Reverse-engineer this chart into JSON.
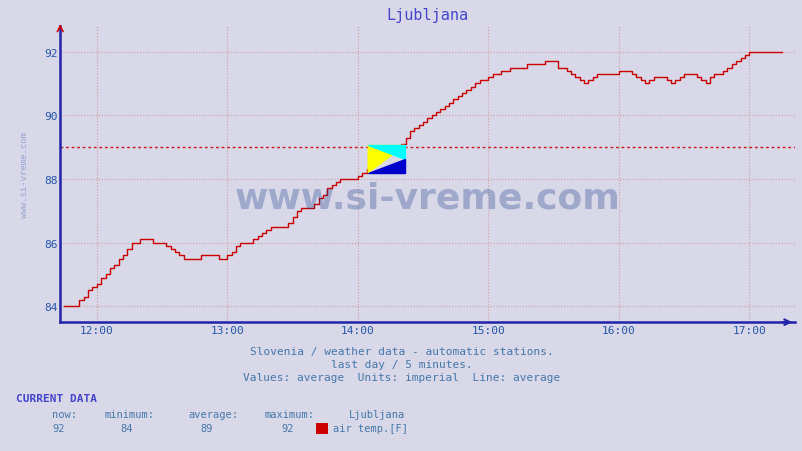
{
  "title": "Ljubljana",
  "title_color": "#4444cc",
  "bg_color": "#d8d8e8",
  "plot_bg_color": "#d8d8e8",
  "line_color": "#cc0000",
  "line_color2": "#111111",
  "avg_line_color": "#cc0000",
  "avg_line_value": 89,
  "ylim": [
    83.5,
    92.8
  ],
  "xlim_start": 11.72,
  "xlim_end": 17.35,
  "xticks": [
    12.0,
    13.0,
    14.0,
    15.0,
    16.0,
    17.0
  ],
  "xtick_labels": [
    "12:00",
    "13:00",
    "14:00",
    "15:00",
    "16:00",
    "17:00"
  ],
  "yticks": [
    84,
    86,
    88,
    90,
    92
  ],
  "grid_color_h": "#cc9999",
  "grid_color_v": "#cc9999",
  "axis_color": "#2222aa",
  "tick_color": "#2255aa",
  "subtitle1": "Slovenia / weather data - automatic stations.",
  "subtitle2": "last day / 5 minutes.",
  "subtitle3": "Values: average  Units: imperial  Line: average",
  "subtitle_color": "#4477aa",
  "watermark": "www.si-vreme.com",
  "watermark_color": "#1a3a8a",
  "watermark_alpha": 0.3,
  "sidebar_text": "www.si-vreme.com",
  "sidebar_color": "#2244aa",
  "sidebar_alpha": 0.35,
  "current_data_label": "CURRENT DATA",
  "now_val": "92",
  "min_val": "84",
  "avg_val": "89",
  "max_val": "92",
  "station_name": "Ljubljana",
  "series_label": "air temp.[F]",
  "hours": [
    11.75,
    11.8,
    11.833,
    11.867,
    11.9,
    11.933,
    11.967,
    12.0,
    12.033,
    12.067,
    12.1,
    12.133,
    12.167,
    12.2,
    12.233,
    12.267,
    12.3,
    12.333,
    12.367,
    12.4,
    12.433,
    12.467,
    12.5,
    12.533,
    12.567,
    12.6,
    12.633,
    12.667,
    12.7,
    12.733,
    12.767,
    12.8,
    12.833,
    12.867,
    12.9,
    12.933,
    12.967,
    13.0,
    13.033,
    13.067,
    13.1,
    13.133,
    13.167,
    13.2,
    13.233,
    13.267,
    13.3,
    13.333,
    13.367,
    13.4,
    13.433,
    13.467,
    13.5,
    13.533,
    13.567,
    13.6,
    13.633,
    13.667,
    13.7,
    13.733,
    13.767,
    13.8,
    13.833,
    13.867,
    13.9,
    13.933,
    13.967,
    14.0,
    14.033,
    14.067,
    14.1,
    14.133,
    14.167,
    14.2,
    14.233,
    14.267,
    14.3,
    14.333,
    14.367,
    14.4,
    14.433,
    14.467,
    14.5,
    14.533,
    14.567,
    14.6,
    14.633,
    14.667,
    14.7,
    14.733,
    14.767,
    14.8,
    14.833,
    14.867,
    14.9,
    14.933,
    14.967,
    15.0,
    15.033,
    15.067,
    15.1,
    15.133,
    15.167,
    15.2,
    15.233,
    15.267,
    15.3,
    15.333,
    15.367,
    15.4,
    15.433,
    15.467,
    15.5,
    15.533,
    15.567,
    15.6,
    15.633,
    15.667,
    15.7,
    15.733,
    15.767,
    15.8,
    15.833,
    15.867,
    15.9,
    15.933,
    15.967,
    16.0,
    16.033,
    16.067,
    16.1,
    16.133,
    16.167,
    16.2,
    16.233,
    16.267,
    16.3,
    16.333,
    16.367,
    16.4,
    16.433,
    16.467,
    16.5,
    16.533,
    16.567,
    16.6,
    16.633,
    16.667,
    16.7,
    16.733,
    16.767,
    16.8,
    16.833,
    16.867,
    16.9,
    16.933,
    16.967,
    17.0,
    17.033,
    17.067,
    17.1,
    17.133,
    17.167,
    17.2,
    17.25
  ],
  "temps": [
    84.0,
    84.0,
    84.0,
    84.2,
    84.3,
    84.5,
    84.6,
    84.7,
    84.9,
    85.0,
    85.2,
    85.3,
    85.5,
    85.6,
    85.8,
    86.0,
    86.0,
    86.1,
    86.1,
    86.1,
    86.0,
    86.0,
    86.0,
    85.9,
    85.8,
    85.7,
    85.6,
    85.5,
    85.5,
    85.5,
    85.5,
    85.6,
    85.6,
    85.6,
    85.6,
    85.5,
    85.5,
    85.6,
    85.7,
    85.9,
    86.0,
    86.0,
    86.0,
    86.1,
    86.2,
    86.3,
    86.4,
    86.5,
    86.5,
    86.5,
    86.5,
    86.6,
    86.8,
    87.0,
    87.1,
    87.1,
    87.1,
    87.2,
    87.4,
    87.5,
    87.7,
    87.8,
    87.9,
    88.0,
    88.0,
    88.0,
    88.0,
    88.1,
    88.2,
    88.3,
    88.5,
    88.6,
    88.7,
    88.8,
    88.9,
    89.0,
    89.0,
    89.1,
    89.3,
    89.5,
    89.6,
    89.7,
    89.8,
    89.9,
    90.0,
    90.1,
    90.2,
    90.3,
    90.4,
    90.5,
    90.6,
    90.7,
    90.8,
    90.9,
    91.0,
    91.1,
    91.1,
    91.2,
    91.3,
    91.3,
    91.4,
    91.4,
    91.5,
    91.5,
    91.5,
    91.5,
    91.6,
    91.6,
    91.6,
    91.6,
    91.7,
    91.7,
    91.7,
    91.5,
    91.5,
    91.4,
    91.3,
    91.2,
    91.1,
    91.0,
    91.1,
    91.2,
    91.3,
    91.3,
    91.3,
    91.3,
    91.3,
    91.4,
    91.4,
    91.4,
    91.3,
    91.2,
    91.1,
    91.0,
    91.1,
    91.2,
    91.2,
    91.2,
    91.1,
    91.0,
    91.1,
    91.2,
    91.3,
    91.3,
    91.3,
    91.2,
    91.1,
    91.0,
    91.2,
    91.3,
    91.3,
    91.4,
    91.5,
    91.6,
    91.7,
    91.8,
    91.9,
    92.0,
    92.0,
    92.0,
    92.0,
    92.0,
    92.0,
    92.0,
    92.0
  ]
}
